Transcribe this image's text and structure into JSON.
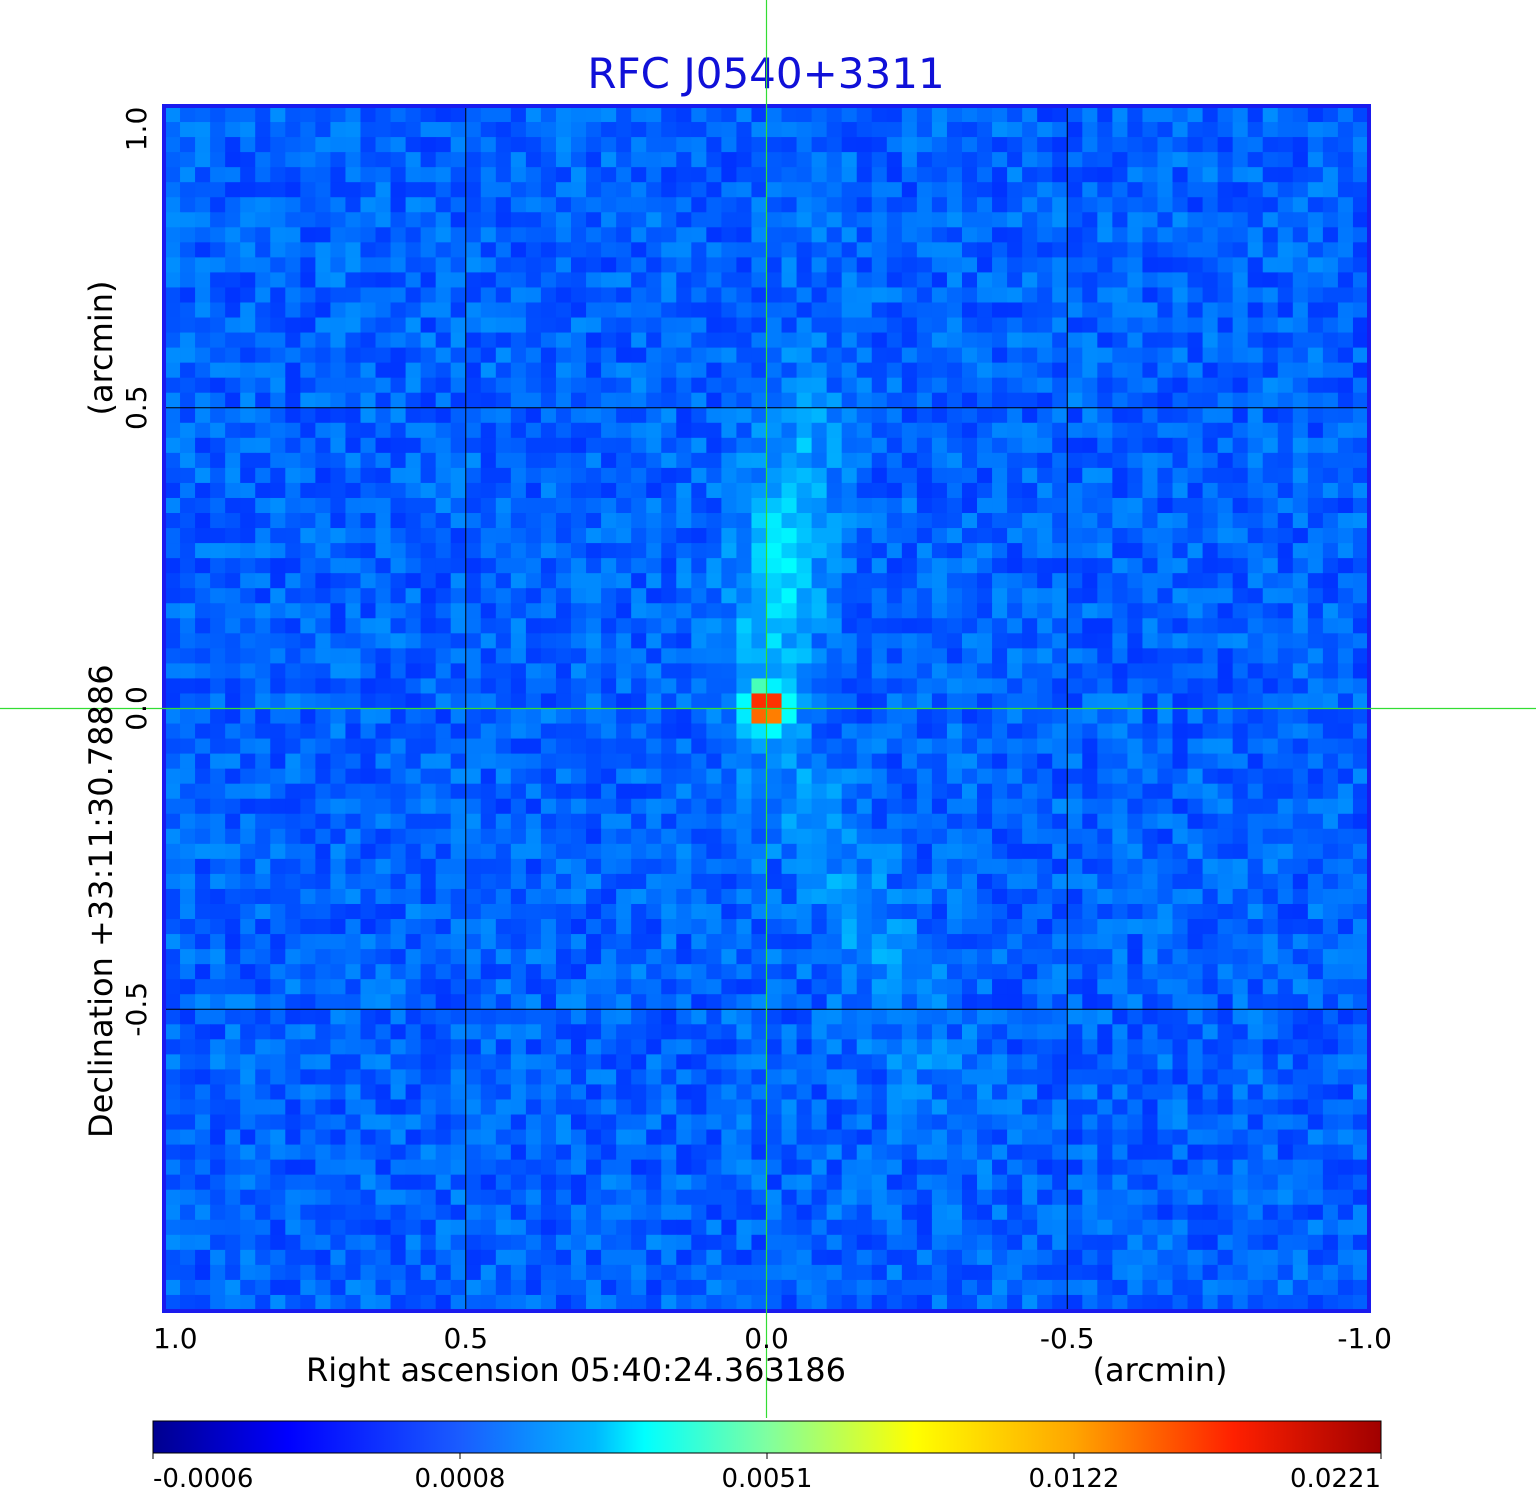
{
  "chart_data": {
    "type": "heatmap",
    "title": "RFC J0540+3311",
    "xlabel": "Right ascension  05:40:24.363186",
    "xunit": "(arcmin)",
    "ylabel": "Declination  +33:11:30.78886",
    "yunit": "(arcmin)",
    "xlim": [
      1.0,
      -1.0
    ],
    "ylim": [
      -1.0,
      1.0
    ],
    "xticks": [
      "1.0",
      "0.5",
      "0.0",
      "-0.5",
      "-1.0"
    ],
    "xtick_values": [
      1.0,
      0.5,
      0.0,
      -0.5,
      -1.0
    ],
    "yticks": [
      "1.0",
      "0.5",
      "0.0",
      "-0.5"
    ],
    "ytick_values": [
      1.0,
      0.5,
      0.0,
      -0.5
    ],
    "grid": true,
    "crosshair": [
      0.0,
      0.0
    ],
    "colormap": "jet",
    "colorbar": {
      "ticks": [
        "-0.0006",
        "0.0008",
        "0.0051",
        "0.0122",
        "0.0221"
      ],
      "min": -0.0006,
      "max": 0.0221
    },
    "source_peak": {
      "x": 0.0,
      "y": 0.0,
      "value": 0.0221
    },
    "colors": {
      "title": "#1010d8",
      "frame": "#1a1aee",
      "grid": "#000000",
      "crosshair": "#33dd33",
      "background": "#2a66f0"
    }
  }
}
